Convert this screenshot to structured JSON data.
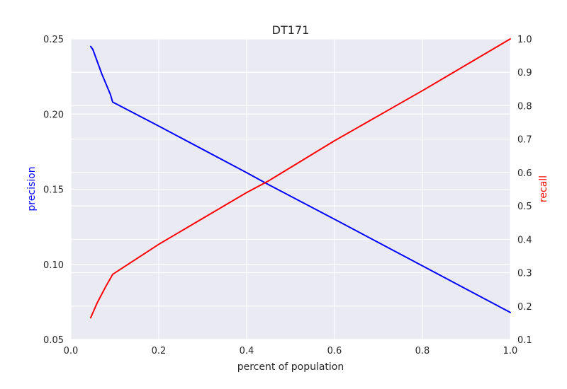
{
  "chart_data": {
    "type": "line",
    "title": "DT171",
    "xlabel": "percent of population",
    "ylabel_left": "precision",
    "ylabel_right": "recall",
    "xlim": [
      0.0,
      1.0
    ],
    "ylim_left": [
      0.05,
      0.25
    ],
    "ylim_right": [
      0.1,
      1.0
    ],
    "x_ticks": [
      "0.0",
      "0.2",
      "0.4",
      "0.6",
      "0.8",
      "1.0"
    ],
    "y_left_ticks": [
      "0.05",
      "0.10",
      "0.15",
      "0.20",
      "0.25"
    ],
    "y_right_ticks": [
      "0.1",
      "0.2",
      "0.3",
      "0.4",
      "0.5",
      "0.6",
      "0.7",
      "0.8",
      "0.9",
      "1.0"
    ],
    "grid": true,
    "colors": {
      "background": "#eaeaf2",
      "grid": "#ffffff",
      "precision": "#0000ff",
      "recall": "#ff0000",
      "text": "#262626"
    },
    "series": [
      {
        "axis": "left",
        "color": "#0000ff",
        "x": [
          0.045,
          0.05,
          0.06,
          0.07,
          0.08,
          0.09,
          0.095,
          0.2,
          0.4,
          0.45,
          0.6,
          0.8,
          1.0
        ],
        "y": [
          0.245,
          0.243,
          0.235,
          0.227,
          0.22,
          0.213,
          0.208,
          0.192,
          0.161,
          0.153,
          0.13,
          0.099,
          0.068
        ]
      },
      {
        "axis": "right",
        "color": "#ff0000",
        "x": [
          0.045,
          0.05,
          0.06,
          0.07,
          0.08,
          0.09,
          0.095,
          0.2,
          0.4,
          0.45,
          0.6,
          0.8,
          1.0
        ],
        "y": [
          0.165,
          0.18,
          0.21,
          0.235,
          0.26,
          0.283,
          0.295,
          0.385,
          0.54,
          0.575,
          0.695,
          0.845,
          1.0
        ]
      }
    ]
  }
}
